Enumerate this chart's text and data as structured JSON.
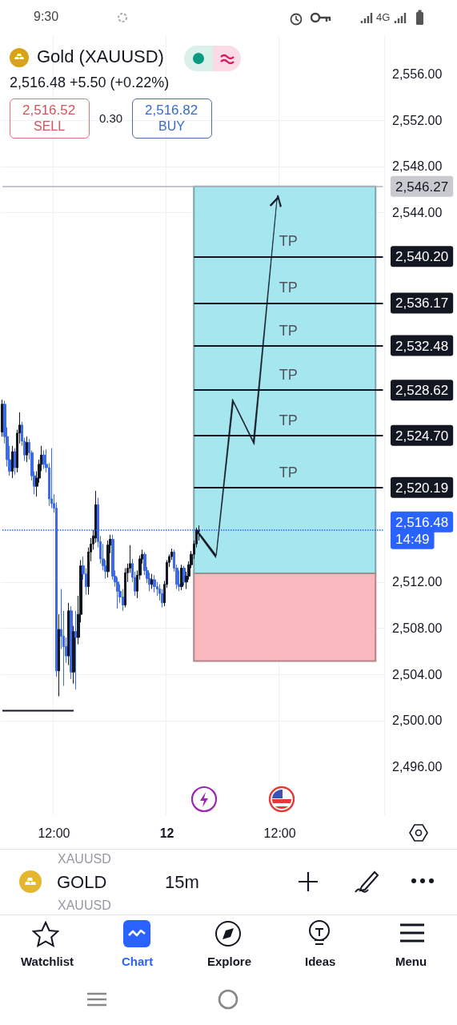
{
  "chart_data": {
    "type": "candlestick",
    "title": "Gold (XAUUSD)",
    "subtitle": "2,516.48  +5.50 (+0.22%)",
    "categories": [
      null,
      null,
      null,
      null,
      null,
      null,
      null,
      null,
      null,
      null,
      null,
      null,
      null,
      null,
      null,
      null,
      null,
      null,
      null,
      null,
      null,
      "12:00",
      null,
      null,
      null,
      null,
      null,
      null,
      null,
      null,
      null,
      null,
      null,
      null,
      null,
      null,
      null,
      null,
      null,
      null,
      null,
      null,
      null,
      null,
      null,
      null,
      null,
      null,
      null,
      null,
      null,
      null,
      null,
      null,
      null,
      null,
      null,
      null,
      null,
      null,
      null,
      null,
      null,
      null,
      null,
      null,
      null,
      "12",
      null,
      null,
      null,
      null,
      null,
      null,
      null,
      null,
      null,
      null,
      null,
      null,
      null,
      null,
      null,
      null,
      null,
      null,
      null,
      null,
      null,
      null,
      null,
      null,
      null,
      null,
      null,
      null,
      null,
      null,
      null,
      null,
      null,
      null,
      null,
      null,
      null,
      null,
      null,
      null,
      null,
      null,
      null,
      null,
      null,
      "12:00",
      null,
      null,
      null,
      null,
      null,
      null,
      null,
      null,
      null,
      null,
      null,
      null,
      null,
      null,
      null,
      null,
      null,
      null,
      null,
      null,
      null,
      null,
      null,
      null,
      null,
      null,
      null,
      null,
      null,
      null,
      null,
      null,
      null,
      null,
      null,
      null,
      null,
      null,
      null,
      null,
      null,
      null
    ],
    "ohlc": [
      [
        2525.0,
        2527.8,
        2524.6,
        2527.4
      ],
      [
        2527.4,
        2527.7,
        2524.0,
        2524.6
      ],
      [
        2524.6,
        2525.4,
        2522.0,
        2522.6
      ],
      [
        2522.6,
        2523.8,
        2521.2,
        2521.6
      ],
      [
        2521.6,
        2523.8,
        2521.0,
        2523.3
      ],
      [
        2523.3,
        2523.6,
        2521.3,
        2521.9
      ],
      [
        2521.9,
        2525.2,
        2521.5,
        2524.9
      ],
      [
        2524.9,
        2526.7,
        2524.0,
        2525.6
      ],
      [
        2525.6,
        2525.9,
        2523.8,
        2524.2
      ],
      [
        2524.2,
        2524.5,
        2522.5,
        2523.0
      ],
      [
        2523.0,
        2524.6,
        2522.4,
        2524.1
      ],
      [
        2524.1,
        2524.4,
        2522.6,
        2523.2
      ],
      [
        2523.2,
        2523.4,
        2520.8,
        2521.2
      ],
      [
        2521.2,
        2521.6,
        2519.6,
        2520.3
      ],
      [
        2520.3,
        2521.6,
        2519.4,
        2521.0
      ],
      [
        2521.0,
        2522.6,
        2520.6,
        2522.2
      ],
      [
        2522.2,
        2523.8,
        2521.6,
        2523.0
      ],
      [
        2523.0,
        2523.4,
        2521.8,
        2522.2
      ],
      [
        2522.2,
        2523.5,
        2521.5,
        2521.9
      ],
      [
        2521.9,
        2522.3,
        2518.6,
        2519.2
      ],
      [
        2519.2,
        2523.6,
        2518.4,
        2518.8
      ],
      [
        2518.8,
        2519.6,
        2518.0,
        2518.4
      ],
      [
        2518.4,
        2518.9,
        2503.8,
        2504.3
      ],
      [
        2504.3,
        2509.2,
        2502.1,
        2507.9
      ],
      [
        2507.9,
        2511.4,
        2506.2,
        2507.3
      ],
      [
        2507.3,
        2509.5,
        2503.0,
        2506.4
      ],
      [
        2506.4,
        2507.2,
        2505.0,
        2505.6
      ],
      [
        2505.6,
        2510.2,
        2504.8,
        2509.5
      ],
      [
        2509.5,
        2509.9,
        2503.6,
        2504.2
      ],
      [
        2504.2,
        2508.2,
        2503.2,
        2507.7
      ],
      [
        2507.7,
        2509.5,
        2502.7,
        2507.2
      ],
      [
        2507.2,
        2510.8,
        2506.6,
        2509.2
      ],
      [
        2509.2,
        2513.9,
        2508.5,
        2513.4
      ],
      [
        2513.4,
        2514.2,
        2512.2,
        2512.7
      ],
      [
        2512.7,
        2513.2,
        2510.9,
        2511.6
      ],
      [
        2511.6,
        2515.0,
        2510.9,
        2514.6
      ],
      [
        2514.6,
        2515.8,
        2513.8,
        2515.3
      ],
      [
        2515.3,
        2516.5,
        2514.8,
        2516.0
      ],
      [
        2515.8,
        2519.9,
        2515.4,
        2518.7
      ],
      [
        2518.7,
        2519.3,
        2515.0,
        2515.5
      ],
      [
        2515.5,
        2516.0,
        2513.6,
        2514.0
      ],
      [
        2514.0,
        2515.3,
        2513.0,
        2513.4
      ],
      [
        2513.4,
        2513.9,
        2512.3,
        2512.9
      ],
      [
        2512.9,
        2515.6,
        2512.4,
        2515.2
      ],
      [
        2515.2,
        2516.1,
        2514.5,
        2515.7
      ],
      [
        2515.7,
        2516.1,
        2512.2,
        2512.5
      ],
      [
        2512.5,
        2513.0,
        2511.6,
        2512.0
      ],
      [
        2512.0,
        2512.4,
        2509.7,
        2511.2
      ],
      [
        2511.2,
        2511.8,
        2510.2,
        2510.7
      ],
      [
        2510.7,
        2511.4,
        2509.5,
        2510.0
      ],
      [
        2510.0,
        2513.2,
        2509.8,
        2512.8
      ],
      [
        2512.8,
        2513.6,
        2512.0,
        2513.2
      ],
      [
        2513.2,
        2515.2,
        2512.8,
        2513.6
      ],
      [
        2513.6,
        2514.0,
        2512.0,
        2512.4
      ],
      [
        2512.4,
        2512.9,
        2510.8,
        2511.2
      ],
      [
        2511.2,
        2513.0,
        2510.6,
        2512.6
      ],
      [
        2512.6,
        2514.3,
        2512.2,
        2514.0
      ],
      [
        2514.0,
        2514.8,
        2513.6,
        2514.4
      ],
      [
        2514.4,
        2514.6,
        2512.6,
        2513.0
      ],
      [
        2513.0,
        2513.3,
        2511.9,
        2512.3
      ],
      [
        2512.3,
        2512.8,
        2511.2,
        2511.8
      ],
      [
        2511.8,
        2512.7,
        2511.4,
        2512.2
      ],
      [
        2512.2,
        2512.6,
        2511.1,
        2511.6
      ],
      [
        2511.6,
        2512.0,
        2510.8,
        2511.4
      ],
      [
        2511.4,
        2511.8,
        2510.4,
        2511.0
      ],
      [
        2511.0,
        2511.4,
        2509.8,
        2510.2
      ],
      [
        2510.2,
        2512.1,
        2509.9,
        2511.8
      ],
      [
        2511.8,
        2513.9,
        2511.5,
        2513.7
      ],
      [
        2513.7,
        2514.4,
        2513.3,
        2514.2
      ],
      [
        2514.2,
        2514.9,
        2513.9,
        2514.6
      ],
      [
        2514.6,
        2514.8,
        2512.9,
        2513.2
      ],
      [
        2513.2,
        2513.5,
        2511.4,
        2511.8
      ],
      [
        2511.8,
        2513.0,
        2511.2,
        2511.6
      ],
      [
        2511.6,
        2513.5,
        2511.3,
        2513.2
      ],
      [
        2513.2,
        2513.4,
        2511.7,
        2512.0
      ],
      [
        2512.0,
        2512.9,
        2511.4,
        2512.5
      ],
      [
        2512.5,
        2513.8,
        2512.2,
        2513.5
      ],
      [
        2513.5,
        2514.7,
        2513.2,
        2514.4
      ],
      [
        2514.4,
        2515.6,
        2514.0,
        2515.3
      ],
      [
        2515.3,
        2516.7,
        2515.0,
        2516.4
      ],
      [
        2516.4,
        2516.9,
        2515.6,
        2516.48
      ],
      null,
      null,
      null,
      null,
      null,
      null,
      null,
      null,
      null,
      null,
      null,
      null,
      null,
      null,
      null,
      null,
      null,
      null,
      null,
      null,
      null,
      null,
      null,
      null,
      null,
      null,
      null,
      null,
      null,
      null,
      null,
      null,
      null,
      null,
      null,
      null,
      null,
      null,
      null,
      null,
      null,
      null,
      null,
      null,
      null,
      null,
      null,
      null,
      null,
      null,
      null,
      null,
      null,
      null,
      null,
      null,
      null,
      null,
      null,
      null,
      null,
      null,
      null,
      null,
      null,
      null,
      null,
      null,
      null,
      null,
      null,
      null,
      null,
      null,
      null
    ],
    "colors": [
      "#131722",
      "#3d6ae6",
      "#3d6ae6",
      "#3d6ae6",
      "#131722",
      "#3d6ae6",
      "#131722",
      "#131722",
      "#3d6ae6",
      "#3d6ae6",
      "#131722",
      "#3d6ae6",
      "#3d6ae6",
      "#3d6ae6",
      "#131722",
      "#131722",
      "#131722",
      "#3d6ae6",
      "#3d6ae6",
      "#3d6ae6",
      "#3d6ae6",
      "#3d6ae6",
      "#3d6ae6",
      "#131722",
      "#3d6ae6",
      "#3d6ae6",
      "#3d6ae6",
      "#131722",
      "#3d6ae6",
      "#131722",
      "#3d6ae6",
      "#131722",
      "#131722",
      "#3d6ae6",
      "#3d6ae6",
      "#131722",
      "#131722",
      "#131722",
      "#131722",
      "#3d6ae6",
      "#3d6ae6",
      "#3d6ae6",
      "#3d6ae6",
      "#131722",
      "#131722",
      "#3d6ae6",
      "#3d6ae6",
      "#3d6ae6",
      "#3d6ae6",
      "#3d6ae6",
      "#131722",
      "#131722",
      "#131722",
      "#3d6ae6",
      "#3d6ae6",
      "#131722",
      "#131722",
      "#131722",
      "#3d6ae6",
      "#3d6ae6",
      "#3d6ae6",
      "#131722",
      "#3d6ae6",
      "#3d6ae6",
      "#3d6ae6",
      "#3d6ae6",
      "#131722",
      "#131722",
      "#131722",
      "#131722",
      "#3d6ae6",
      "#3d6ae6",
      "#3d6ae6",
      "#131722",
      "#3d6ae6",
      "#131722",
      "#131722",
      "#131722",
      "#131722",
      "#131722",
      "#131722",
      null,
      null,
      null,
      null,
      null,
      null,
      null,
      null,
      null,
      null,
      null,
      null,
      null,
      null,
      null,
      null,
      null,
      null,
      null,
      null,
      null,
      null,
      null,
      null,
      null,
      null,
      null,
      null,
      null,
      null,
      null,
      null,
      null,
      null,
      null,
      null,
      null,
      null,
      null,
      null,
      null,
      null,
      null,
      null,
      null,
      null,
      null,
      null,
      null,
      null,
      null,
      null,
      null,
      null,
      null,
      null,
      null,
      null,
      null,
      null,
      null,
      null,
      null,
      null,
      null,
      null,
      null,
      null,
      null,
      null,
      null,
      null,
      null,
      null,
      null
    ],
    "series": [
      {
        "type": "line",
        "color": "#131722",
        "values": [
          2500.85,
          2500.85,
          2500.85,
          2500.85,
          2500.85,
          2500.85,
          2500.85,
          2500.85,
          2500.85,
          2500.85,
          2500.85,
          2500.85,
          2500.85,
          2500.85,
          2500.85,
          2500.85,
          2500.85,
          2500.85,
          2500.85,
          2500.85,
          2500.85,
          2500.85,
          2500.85,
          2500.85,
          2500.85,
          2500.85,
          2500.85,
          2500.85,
          2500.85,
          2500.85,
          null,
          null,
          null,
          null,
          null,
          null,
          null,
          null,
          null,
          null,
          null,
          null,
          null,
          null,
          null,
          null,
          null,
          null,
          null,
          null,
          null,
          null,
          null,
          null,
          null,
          null,
          null,
          null,
          null,
          null,
          null,
          null,
          null,
          null,
          null,
          null,
          null,
          null,
          null,
          null,
          null,
          null,
          null,
          null,
          null,
          null,
          null,
          null,
          null,
          null,
          null,
          null,
          null,
          null,
          null,
          null,
          null,
          null,
          null,
          null,
          null,
          null,
          null,
          null,
          null,
          null,
          null,
          null,
          null,
          null,
          null,
          null,
          null,
          null,
          null,
          null,
          null,
          null,
          null,
          null,
          null,
          null,
          null,
          null,
          null,
          null,
          null,
          null,
          null,
          null,
          null,
          null,
          null,
          null,
          null,
          null,
          null,
          null,
          null,
          null,
          null,
          null,
          null,
          null,
          null,
          null,
          null,
          null,
          null,
          null,
          null,
          null,
          null,
          null,
          null,
          null,
          null,
          null,
          null,
          null,
          null,
          null,
          null,
          null,
          null,
          null
        ]
      }
    ],
    "ylim": [
      2491.8,
      2559.3
    ],
    "yticks": [
      {
        "value": 2556,
        "label": "2,556.00"
      },
      {
        "value": 2552,
        "label": "2,552.00"
      },
      {
        "value": 2548,
        "label": "2,548.00"
      },
      {
        "value": 2544,
        "label": "2,544.00"
      },
      {
        "value": 2512,
        "label": "2,512.00"
      },
      {
        "value": 2508,
        "label": "2,508.00"
      },
      {
        "value": 2504,
        "label": "2,504.00"
      },
      {
        "value": 2500,
        "label": "2,500.00"
      },
      {
        "value": 2496,
        "label": "2,496.00"
      }
    ],
    "grid": true,
    "bands": [
      {
        "axis": "y",
        "from": 2512.75,
        "to": 2546.27,
        "color": "#a6e6ef"
      },
      {
        "axis": "y",
        "from": 2505.15,
        "to": 2512.75,
        "color": "#f8b8bd"
      }
    ],
    "ref_lines": [
      {
        "axis": "y",
        "value": 2546.27,
        "label": "2,546.27",
        "color": "#b2b5be"
      },
      {
        "axis": "y",
        "value": 2540.2,
        "label": "2,540.20",
        "color": "#131722"
      },
      {
        "axis": "y",
        "value": 2536.17,
        "label": "2,536.17",
        "color": "#131722"
      },
      {
        "axis": "y",
        "value": 2532.48,
        "label": "2,532.48",
        "color": "#131722"
      },
      {
        "axis": "y",
        "value": 2528.62,
        "label": "2,528.62",
        "color": "#131722"
      },
      {
        "axis": "y",
        "value": 2524.7,
        "label": "2,524.70",
        "color": "#131722"
      },
      {
        "axis": "y",
        "value": 2520.19,
        "label": "2,520.19",
        "color": "#131722"
      },
      {
        "axis": "y",
        "value": 2516.48,
        "label": "2,516.48",
        "color": "#2962ff",
        "line_style": "dotted"
      }
    ],
    "annotations": [
      "2,516.52",
      "SELL",
      "0.30",
      "2,516.82",
      "BUY",
      "9:30",
      "4G",
      "GOLD",
      "15m",
      "Watchlist",
      "Chart",
      "Explore",
      "Ideas",
      "Menu",
      "XAUUSD",
      "XAUUSD",
      "14:49",
      {
        "text": "TP",
        "y": 2540.2
      },
      {
        "text": "TP",
        "y": 2536.17
      },
      {
        "text": "TP",
        "y": 2532.48
      },
      {
        "text": "TP",
        "y": 2528.62
      },
      {
        "text": "TP",
        "y": 2524.7
      },
      {
        "text": "TP",
        "y": 2520.19
      }
    ]
  }
}
